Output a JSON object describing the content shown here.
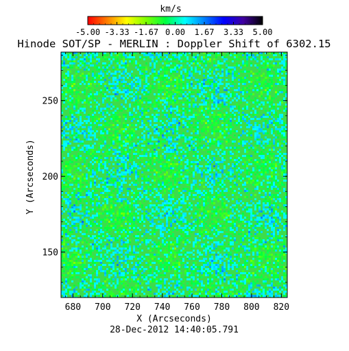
{
  "chart_data": {
    "type": "heatmap",
    "title": "Hinode SOT/SP - MERLIN : Doppler Shift of 6302.15",
    "xlabel": "X (Arcseconds)",
    "ylabel": "Y (Arcseconds)",
    "xlim": [
      672,
      824
    ],
    "ylim": [
      120,
      282
    ],
    "x_ticks": [
      "680",
      "700",
      "720",
      "740",
      "760",
      "780",
      "800",
      "820"
    ],
    "y_ticks": [
      "150",
      "200",
      "250"
    ],
    "timestamp": "28-Dec-2012 14:40:05.791",
    "colorbar": {
      "label": "km/s",
      "range": [
        -5.0,
        5.0
      ],
      "ticks": [
        "-5.00",
        "-3.33",
        "-1.67",
        "0.00",
        "1.67",
        "3.33",
        "5.00"
      ],
      "colormap": [
        "#ff0000",
        "#ff7f00",
        "#ffff00",
        "#80ff00",
        "#00ff40",
        "#00ffff",
        "#0080ff",
        "#0000ff",
        "#4000a0",
        "#000000"
      ]
    },
    "dominant_value_range_kms": [
      -0.8,
      0.8
    ],
    "grid": false
  }
}
